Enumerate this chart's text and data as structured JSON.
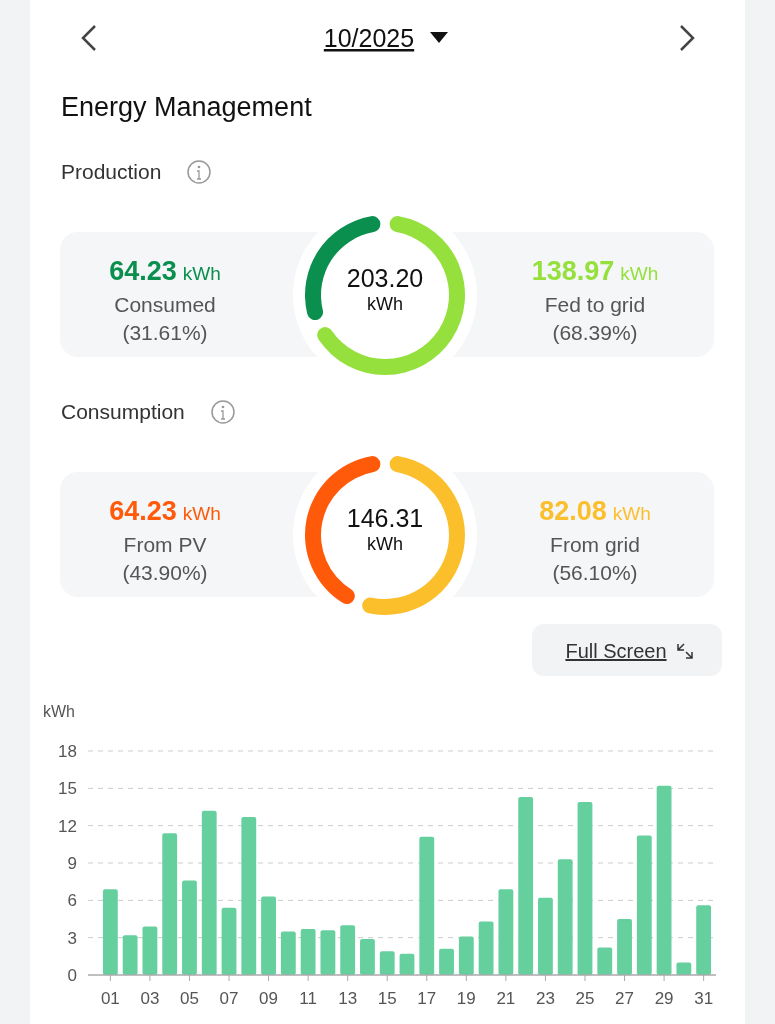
{
  "chart_data": [
    {
      "type": "donut",
      "title": "Energy Management",
      "subtitle": "Production",
      "annotations": [
        "10/2025",
        "203.20",
        "kWh",
        "(31.61%)",
        "(68.39%)"
      ],
      "categories": [
        "Consumed",
        "Fed to grid"
      ],
      "values": [
        64.23,
        138.97
      ],
      "colors": [
        "#0b8f4e",
        "#95e03d"
      ],
      "value_labels": [
        "64.23 kWh",
        "138.97 kWh"
      ]
    },
    {
      "type": "donut",
      "title": "Consumption",
      "annotations": [
        "146.31",
        "kWh",
        "(43.90%)",
        "(56.10%)"
      ],
      "categories": [
        "From PV",
        "From grid"
      ],
      "values": [
        64.23,
        82.08
      ],
      "colors": [
        "#ff5a0a",
        "#fcbf2c"
      ],
      "value_labels": [
        "64.23 kWh",
        "82.08 kWh"
      ]
    },
    {
      "type": "bar",
      "ylabel": "kWh",
      "annotations": [
        "Full Screen"
      ],
      "categories": [
        "01",
        null,
        "03",
        null,
        "05",
        null,
        "07",
        null,
        "09",
        null,
        "11",
        null,
        "13",
        null,
        "15",
        null,
        "17",
        null,
        "19",
        null,
        "21",
        null,
        "23",
        null,
        "25",
        null,
        "27",
        null,
        "29",
        null,
        "31"
      ],
      "values": [
        6.9,
        3.2,
        3.9,
        11.4,
        7.6,
        13.2,
        5.4,
        12.7,
        6.3,
        3.5,
        3.7,
        3.6,
        4.0,
        2.9,
        1.9,
        1.7,
        11.1,
        2.1,
        3.1,
        4.3,
        6.9,
        14.3,
        6.2,
        9.3,
        13.9,
        2.2,
        4.5,
        11.2,
        15.2,
        1.0,
        5.6
      ],
      "color": "#66cf9e",
      "ylim": [
        0,
        18
      ],
      "yticks": [
        0,
        3,
        6,
        9,
        12,
        15,
        18
      ],
      "grid": "y"
    }
  ]
}
